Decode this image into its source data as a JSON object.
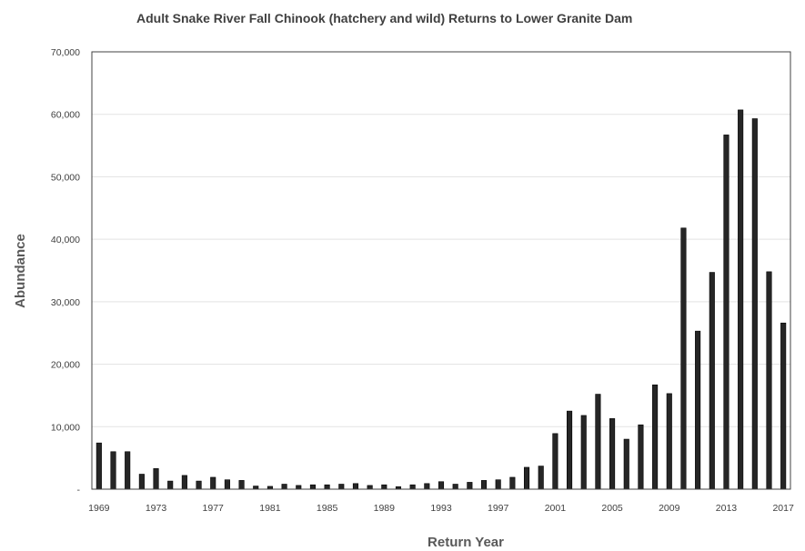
{
  "chart_data": {
    "type": "bar",
    "title": "Adult Snake River Fall Chinook (hatchery and wild) Returns to Lower Granite Dam",
    "xlabel": "Return Year",
    "ylabel": "Abundance",
    "ylim": [
      0,
      70000
    ],
    "yticks": [
      0,
      10000,
      20000,
      30000,
      40000,
      50000,
      60000,
      70000
    ],
    "ytick_labels": [
      "-",
      "10,000",
      "20,000",
      "30,000",
      "40,000",
      "50,000",
      "60,000",
      "70,000"
    ],
    "xtick_labels": [
      "1969",
      "1973",
      "1977",
      "1981",
      "1985",
      "1989",
      "1993",
      "1997",
      "2001",
      "2005",
      "2009",
      "2013",
      "2017"
    ],
    "grid": "horizontal",
    "bar_color": "#262626",
    "categories": [
      "1969",
      "1970",
      "1971",
      "1972",
      "1973",
      "1974",
      "1975",
      "1976",
      "1977",
      "1978",
      "1979",
      "1980",
      "1981",
      "1982",
      "1983",
      "1984",
      "1985",
      "1986",
      "1987",
      "1988",
      "1989",
      "1990",
      "1991",
      "1992",
      "1993",
      "1994",
      "1995",
      "1996",
      "1997",
      "1998",
      "1999",
      "2000",
      "2001",
      "2002",
      "2003",
      "2004",
      "2005",
      "2006",
      "2007",
      "2008",
      "2009",
      "2010",
      "2011",
      "2012",
      "2013",
      "2014",
      "2015",
      "2016",
      "2017"
    ],
    "values": [
      7400,
      6000,
      6000,
      2400,
      3300,
      1300,
      2200,
      1300,
      1900,
      1500,
      1400,
      500,
      450,
      800,
      600,
      700,
      700,
      800,
      900,
      600,
      700,
      400,
      700,
      900,
      1200,
      800,
      1100,
      1400,
      1500,
      1900,
      3500,
      3700,
      8900,
      12500,
      11800,
      15200,
      11300,
      8000,
      10300,
      16700,
      15300,
      41800,
      25300,
      34700,
      56700,
      60700,
      59300,
      34800,
      26600
    ]
  }
}
